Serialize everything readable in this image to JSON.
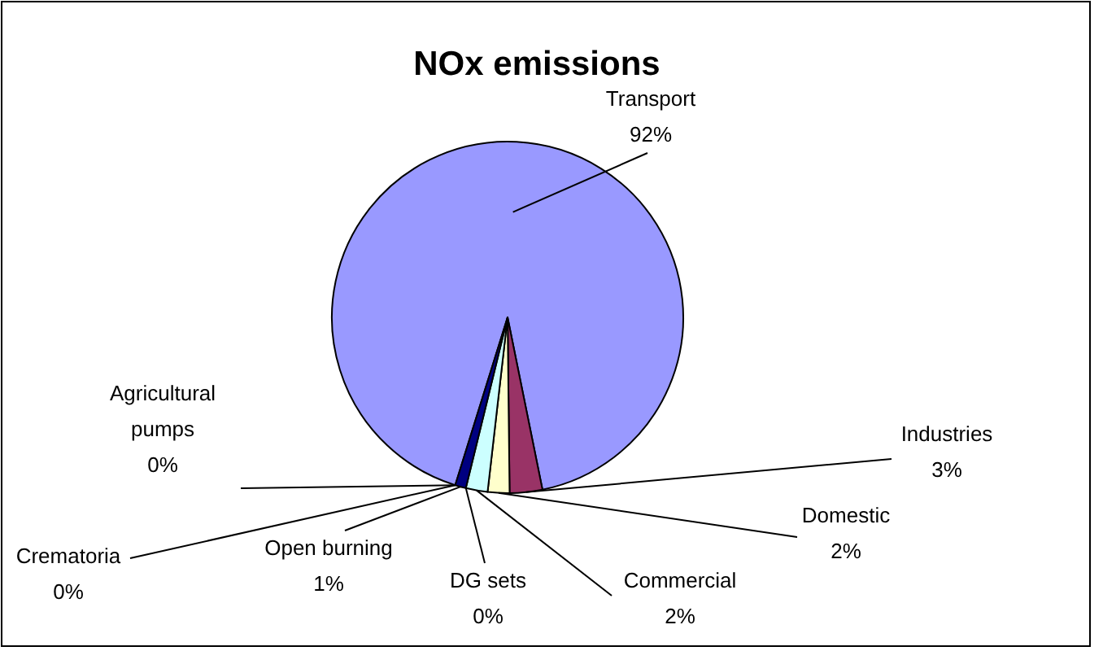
{
  "chart_data": {
    "type": "pie",
    "title": "NOx emissions",
    "categories": [
      "Transport",
      "Industries",
      "Domestic",
      "Commercial",
      "DG sets",
      "Open burning",
      "Crematoria",
      "Agricultural pumps"
    ],
    "values": [
      92,
      3,
      2,
      2,
      0,
      1,
      0,
      0
    ],
    "value_labels": [
      "92%",
      "3%",
      "2%",
      "2%",
      "0%",
      "1%",
      "0%",
      "0%"
    ],
    "colors": [
      "#9999ff",
      "#993366",
      "#ffffcc",
      "#ccffff",
      "#660066",
      "#000080",
      "#0066cc",
      "#cccccc"
    ]
  }
}
